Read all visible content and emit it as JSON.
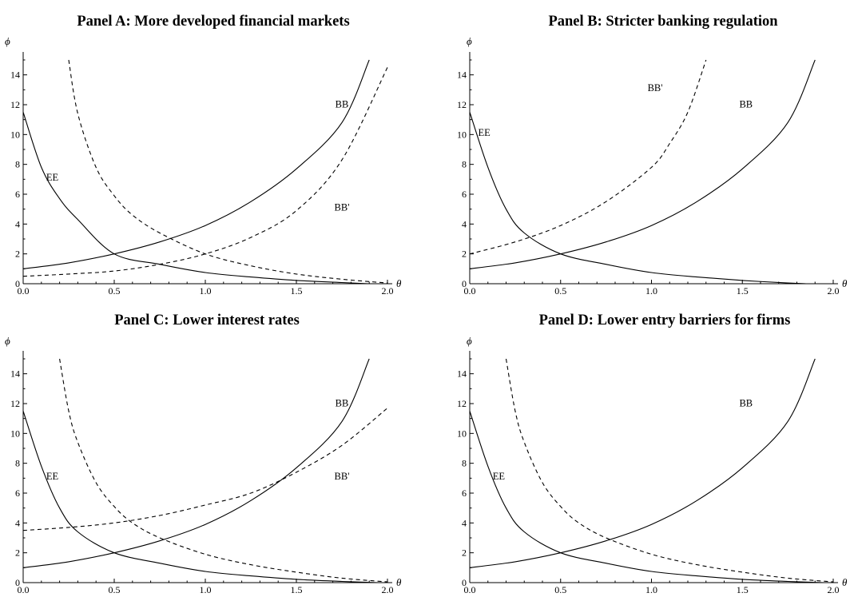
{
  "chart_data": [
    {
      "type": "line",
      "title": "Panel A: More developed financial markets",
      "xlabel": "θ",
      "ylabel": "ϕ",
      "xlim": [
        0,
        2.0
      ],
      "ylim": [
        0,
        15
      ],
      "xticks": [
        "0.0",
        "0.5",
        "1.0",
        "1.5",
        "2.0"
      ],
      "yticks": [
        "0",
        "2",
        "4",
        "6",
        "8",
        "10",
        "12",
        "14"
      ],
      "series": [
        {
          "name": "EE",
          "style": "solid",
          "x": [
            0.0,
            0.1,
            0.2,
            0.3,
            0.5,
            0.75,
            1.0,
            1.25,
            1.5,
            1.75,
            1.9
          ],
          "y": [
            11.5,
            7.8,
            5.7,
            4.3,
            2.0,
            1.3,
            0.75,
            0.45,
            0.22,
            0.08,
            0.0
          ]
        },
        {
          "name": "BB",
          "style": "solid",
          "x": [
            0.0,
            0.25,
            0.5,
            0.75,
            1.0,
            1.25,
            1.5,
            1.75,
            1.9
          ],
          "y": [
            1.0,
            1.4,
            2.0,
            2.8,
            3.9,
            5.5,
            7.7,
            10.8,
            15.0
          ]
        },
        {
          "name": "",
          "style": "dashed",
          "x": [
            0.25,
            0.3,
            0.4,
            0.5,
            0.6,
            0.75,
            1.0,
            1.25,
            1.5,
            1.75,
            2.0
          ],
          "y": [
            15.0,
            11.4,
            7.8,
            5.9,
            4.6,
            3.4,
            2.0,
            1.2,
            0.65,
            0.3,
            0.05
          ]
        },
        {
          "name": "BB'",
          "style": "dashed",
          "x": [
            0.0,
            0.25,
            0.5,
            0.75,
            1.0,
            1.25,
            1.5,
            1.75,
            2.0
          ],
          "y": [
            0.5,
            0.65,
            0.85,
            1.3,
            2.0,
            3.1,
            4.9,
            8.3,
            14.5
          ]
        }
      ],
      "annotations": [
        {
          "text": "EE",
          "x": 0.16,
          "y": 6.9
        },
        {
          "text": "BB",
          "x": 1.75,
          "y": 11.8
        },
        {
          "text": "BB'",
          "x": 1.75,
          "y": 4.9
        }
      ]
    },
    {
      "type": "line",
      "title": "Panel B: Stricter banking regulation",
      "xlabel": "θ",
      "ylabel": "ϕ",
      "xlim": [
        0,
        2.0
      ],
      "ylim": [
        0,
        15
      ],
      "xticks": [
        "0.0",
        "0.5",
        "1.0",
        "1.5",
        "2.0"
      ],
      "yticks": [
        "0",
        "2",
        "4",
        "6",
        "8",
        "10",
        "12",
        "14"
      ],
      "series": [
        {
          "name": "EE",
          "style": "solid",
          "x": [
            0.0,
            0.1,
            0.2,
            0.3,
            0.5,
            0.75,
            1.0,
            1.25,
            1.5,
            1.75,
            1.85
          ],
          "y": [
            11.5,
            7.8,
            5.0,
            3.4,
            2.0,
            1.3,
            0.75,
            0.45,
            0.22,
            0.05,
            0.0
          ]
        },
        {
          "name": "BB",
          "style": "solid",
          "x": [
            0.0,
            0.25,
            0.5,
            0.75,
            1.0,
            1.25,
            1.5,
            1.75,
            1.9
          ],
          "y": [
            1.0,
            1.4,
            2.0,
            2.8,
            3.9,
            5.5,
            7.7,
            10.8,
            15.0
          ]
        },
        {
          "name": "BB'",
          "style": "dashed",
          "x": [
            0.0,
            0.25,
            0.5,
            0.75,
            1.0,
            1.1,
            1.2,
            1.3
          ],
          "y": [
            2.0,
            2.8,
            3.9,
            5.5,
            7.8,
            9.4,
            11.5,
            15.0
          ]
        }
      ],
      "annotations": [
        {
          "text": "EE",
          "x": 0.08,
          "y": 9.9
        },
        {
          "text": "BB'",
          "x": 1.02,
          "y": 12.9
        },
        {
          "text": "BB",
          "x": 1.52,
          "y": 11.8
        }
      ]
    },
    {
      "type": "line",
      "title": "Panel C: Lower interest rates",
      "xlabel": "θ",
      "ylabel": "ϕ",
      "xlim": [
        0,
        2.0
      ],
      "ylim": [
        0,
        15
      ],
      "xticks": [
        "0.0",
        "0.5",
        "1.0",
        "1.5",
        "2.0"
      ],
      "yticks": [
        "0",
        "2",
        "4",
        "6",
        "8",
        "10",
        "12",
        "14"
      ],
      "series": [
        {
          "name": "EE",
          "style": "solid",
          "x": [
            0.0,
            0.1,
            0.2,
            0.3,
            0.5,
            0.75,
            1.0,
            1.25,
            1.5,
            1.75,
            1.95
          ],
          "y": [
            11.5,
            7.8,
            5.0,
            3.4,
            2.0,
            1.3,
            0.75,
            0.45,
            0.22,
            0.08,
            0.0
          ]
        },
        {
          "name": "BB",
          "style": "solid",
          "x": [
            0.0,
            0.25,
            0.5,
            0.75,
            1.0,
            1.25,
            1.5,
            1.75,
            1.9
          ],
          "y": [
            1.0,
            1.4,
            2.0,
            2.8,
            3.9,
            5.5,
            7.7,
            10.8,
            15.0
          ]
        },
        {
          "name": "",
          "style": "dashed",
          "x": [
            0.2,
            0.25,
            0.3,
            0.4,
            0.5,
            0.6,
            0.75,
            1.0,
            1.25,
            1.5,
            1.75,
            2.0
          ],
          "y": [
            15.0,
            11.5,
            9.4,
            6.7,
            5.1,
            4.0,
            3.0,
            1.9,
            1.2,
            0.7,
            0.3,
            0.05
          ]
        },
        {
          "name": "BB'",
          "style": "dashed",
          "x": [
            0.0,
            0.25,
            0.5,
            0.75,
            1.0,
            1.25,
            1.5,
            1.75,
            2.0
          ],
          "y": [
            3.5,
            3.7,
            4.0,
            4.5,
            5.2,
            6.0,
            7.4,
            9.2,
            11.7
          ]
        }
      ],
      "annotations": [
        {
          "text": "EE",
          "x": 0.16,
          "y": 6.9
        },
        {
          "text": "BB",
          "x": 1.75,
          "y": 11.8
        },
        {
          "text": "BB'",
          "x": 1.75,
          "y": 6.9
        }
      ]
    },
    {
      "type": "line",
      "title": "Panel D: Lower entry barriers for firms",
      "xlabel": "θ",
      "ylabel": "ϕ",
      "xlim": [
        0,
        2.0
      ],
      "ylim": [
        0,
        15
      ],
      "xticks": [
        "0.0",
        "0.5",
        "1.0",
        "1.5",
        "2.0"
      ],
      "yticks": [
        "0",
        "2",
        "4",
        "6",
        "8",
        "10",
        "12",
        "14"
      ],
      "series": [
        {
          "name": "EE",
          "style": "solid",
          "x": [
            0.0,
            0.1,
            0.2,
            0.3,
            0.5,
            0.75,
            1.0,
            1.25,
            1.5,
            1.75,
            1.95
          ],
          "y": [
            11.5,
            7.8,
            5.0,
            3.4,
            2.0,
            1.3,
            0.75,
            0.45,
            0.22,
            0.08,
            0.0
          ]
        },
        {
          "name": "BB",
          "style": "solid",
          "x": [
            0.0,
            0.25,
            0.5,
            0.75,
            1.0,
            1.25,
            1.5,
            1.75,
            1.9
          ],
          "y": [
            1.0,
            1.4,
            2.0,
            2.8,
            3.9,
            5.5,
            7.7,
            10.8,
            15.0
          ]
        },
        {
          "name": "",
          "style": "dashed",
          "x": [
            0.2,
            0.25,
            0.3,
            0.4,
            0.5,
            0.6,
            0.75,
            1.0,
            1.25,
            1.5,
            1.75,
            2.0
          ],
          "y": [
            15.0,
            11.5,
            9.4,
            6.7,
            5.1,
            4.0,
            3.0,
            1.9,
            1.2,
            0.7,
            0.3,
            0.05
          ]
        }
      ],
      "annotations": [
        {
          "text": "EE",
          "x": 0.16,
          "y": 6.9
        },
        {
          "text": "BB",
          "x": 1.52,
          "y": 11.8
        }
      ]
    }
  ]
}
